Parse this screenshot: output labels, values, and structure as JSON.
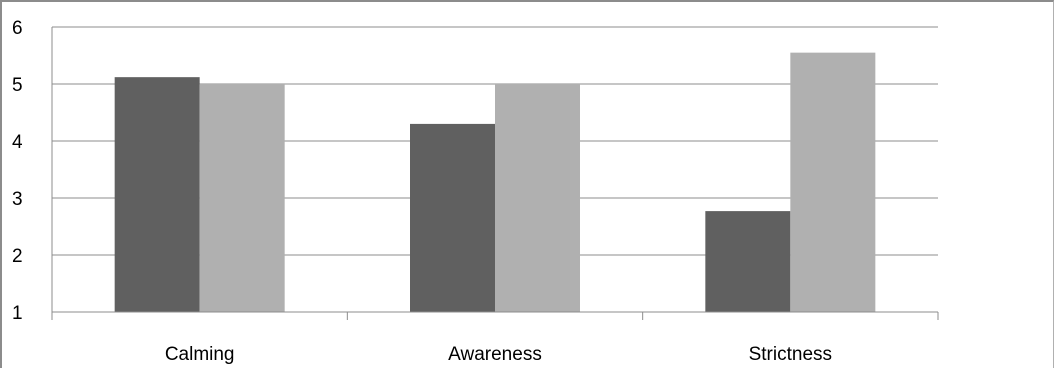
{
  "chart_data": {
    "type": "bar",
    "title": "",
    "xlabel": "",
    "ylabel": "",
    "categories": [
      "Calming",
      "Awareness",
      "Strictness"
    ],
    "series": [
      {
        "values": [
          5.12,
          4.3,
          2.77
        ],
        "color": "#606060"
      },
      {
        "values": [
          5.0,
          5.0,
          5.55
        ],
        "color": "#b0b0b0"
      }
    ],
    "ylim": [
      1,
      6
    ],
    "yticks": [
      "1",
      "2",
      "3",
      "4",
      "5",
      "6"
    ],
    "grid": true,
    "legend": "none"
  }
}
